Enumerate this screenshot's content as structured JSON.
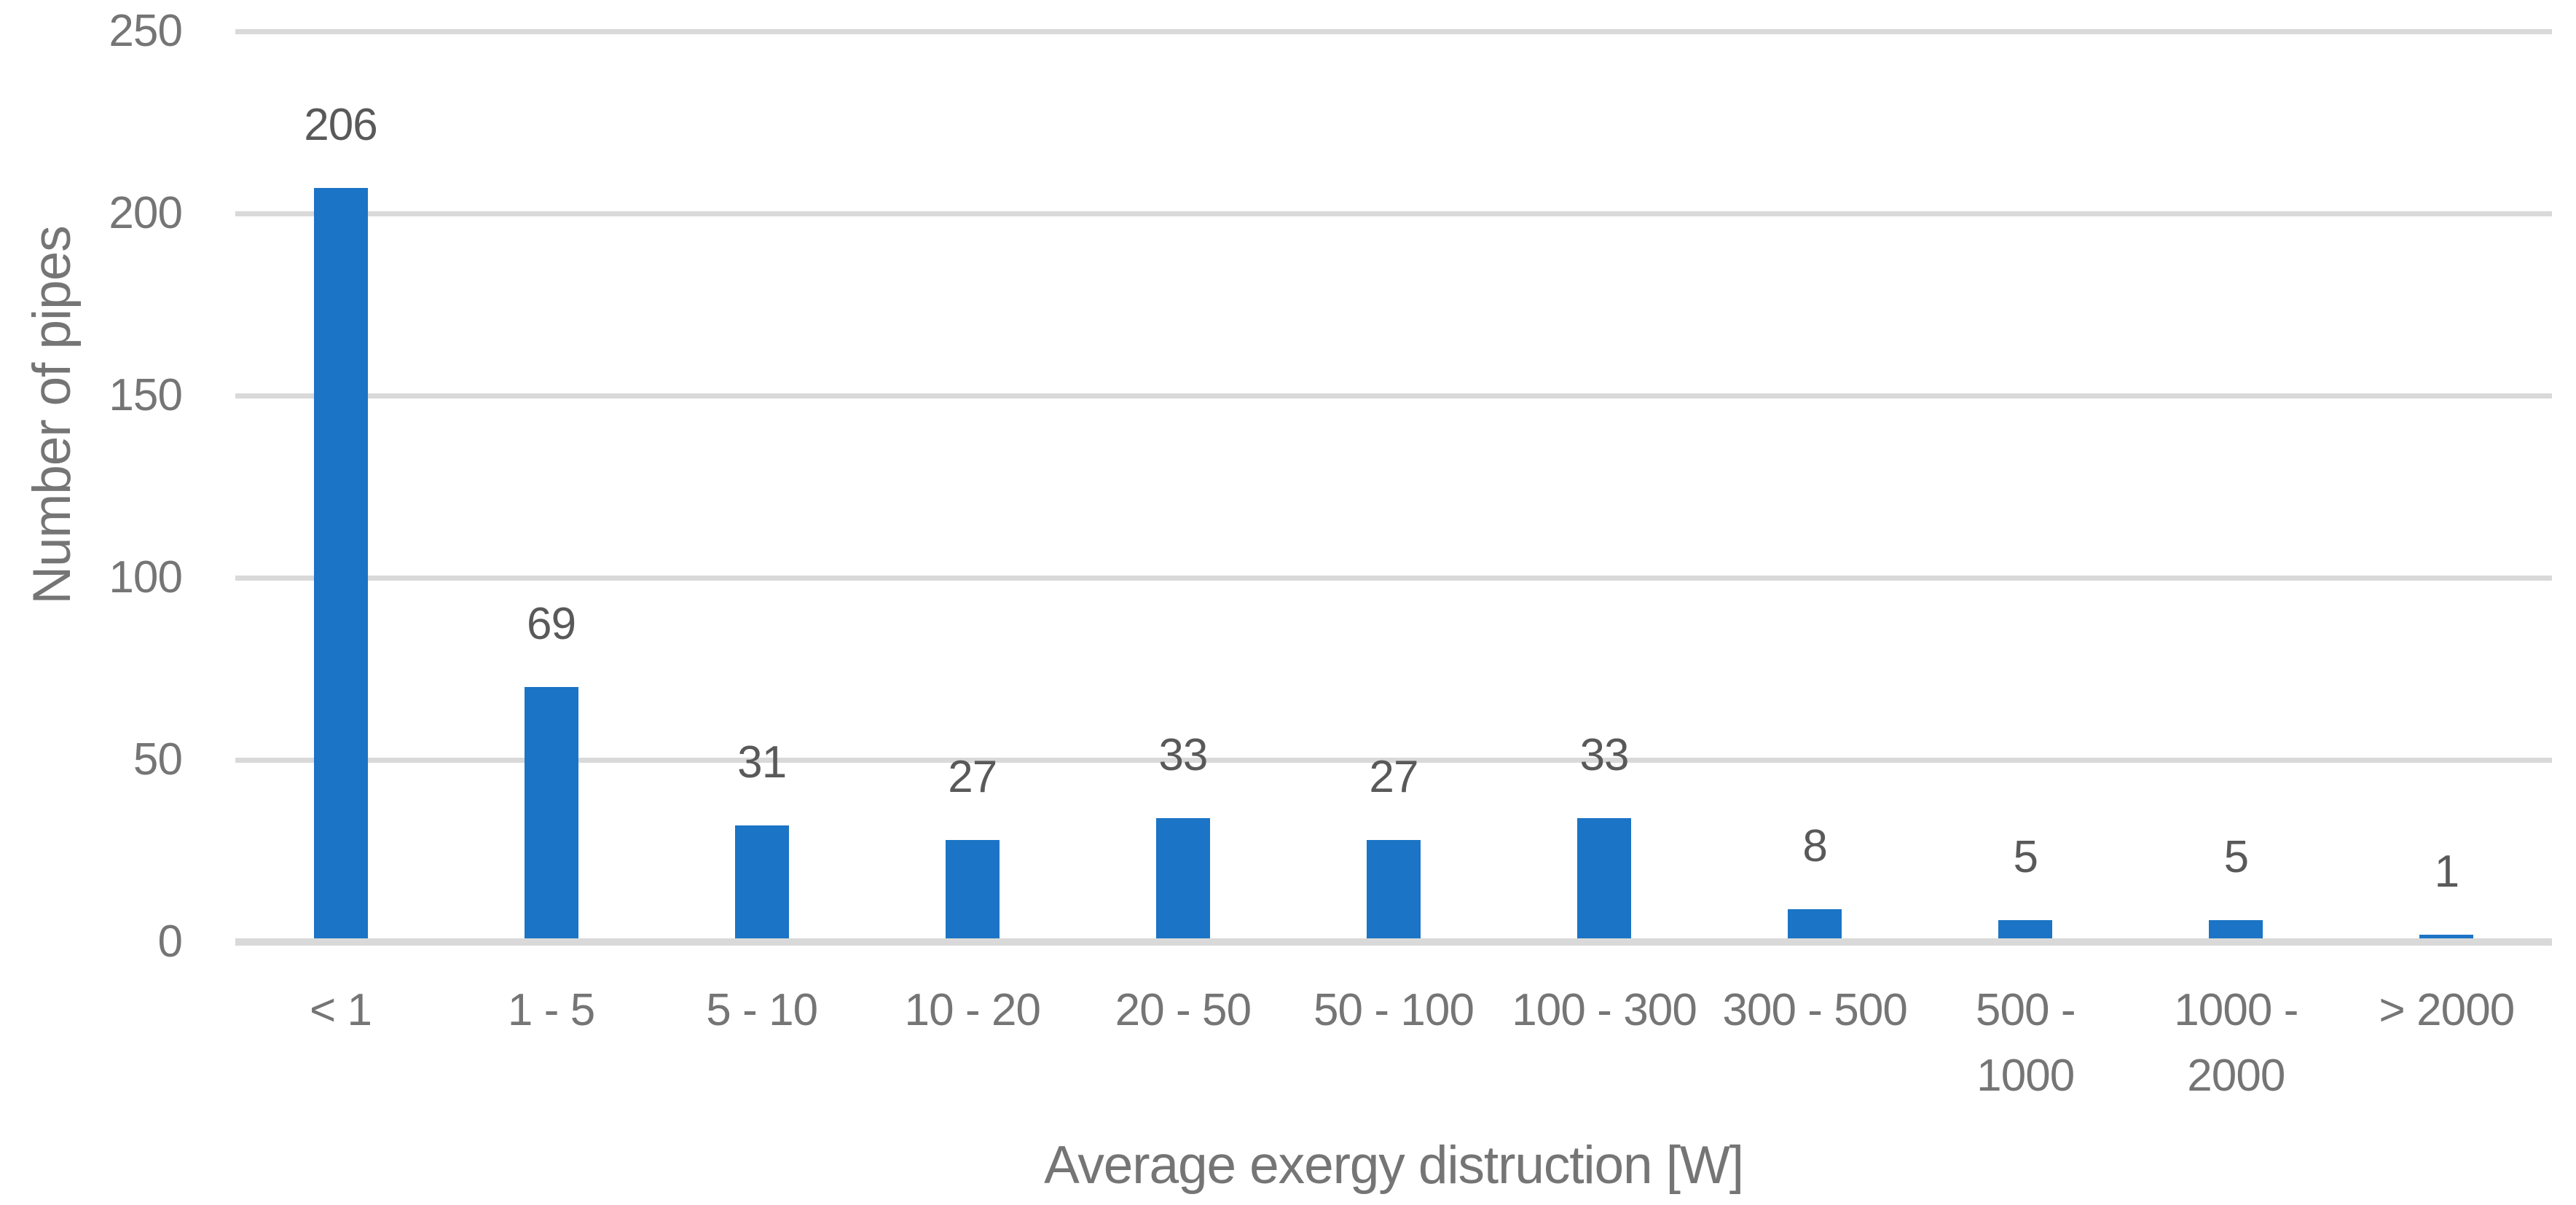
{
  "chart_data": {
    "type": "bar",
    "title": "",
    "categories": [
      "< 1",
      "1 - 5",
      "5 - 10",
      "10 - 20",
      "20 - 50",
      "50 - 100",
      "100 - 300",
      "300 - 500",
      "500 - 1000",
      "1000 - 2000",
      "> 2000"
    ],
    "category_label_lines": [
      [
        "< 1"
      ],
      [
        "1 - 5"
      ],
      [
        "5 - 10"
      ],
      [
        "10 - 20"
      ],
      [
        "20 - 50"
      ],
      [
        "50 - 100"
      ],
      [
        "100 - 300"
      ],
      [
        "300 - 500"
      ],
      [
        "500 -",
        "1000"
      ],
      [
        "1000 -",
        "2000"
      ],
      [
        "> 2000"
      ]
    ],
    "values": [
      206,
      69,
      31,
      27,
      33,
      27,
      33,
      8,
      5,
      5,
      1
    ],
    "data_labels": [
      "206",
      "69",
      "31",
      "27",
      "33",
      "27",
      "33",
      "8",
      "5",
      "5",
      "1"
    ],
    "xlabel": "Average exergy distruction [W]",
    "ylabel": "Number of pipes",
    "ylim": [
      0,
      250
    ],
    "yticks": [
      0,
      50,
      100,
      150,
      200,
      250
    ],
    "grid": "horizontal-gridlines-on",
    "legend_position": "none",
    "colors": {
      "bar": "#1B74C5",
      "gridline": "#D9D9D9",
      "axis_line": "#D9D9D9",
      "data_label_text": "#595959",
      "tick_text": "#757575",
      "axis_title_text": "#757575",
      "background": "#FFFFFF"
    }
  }
}
